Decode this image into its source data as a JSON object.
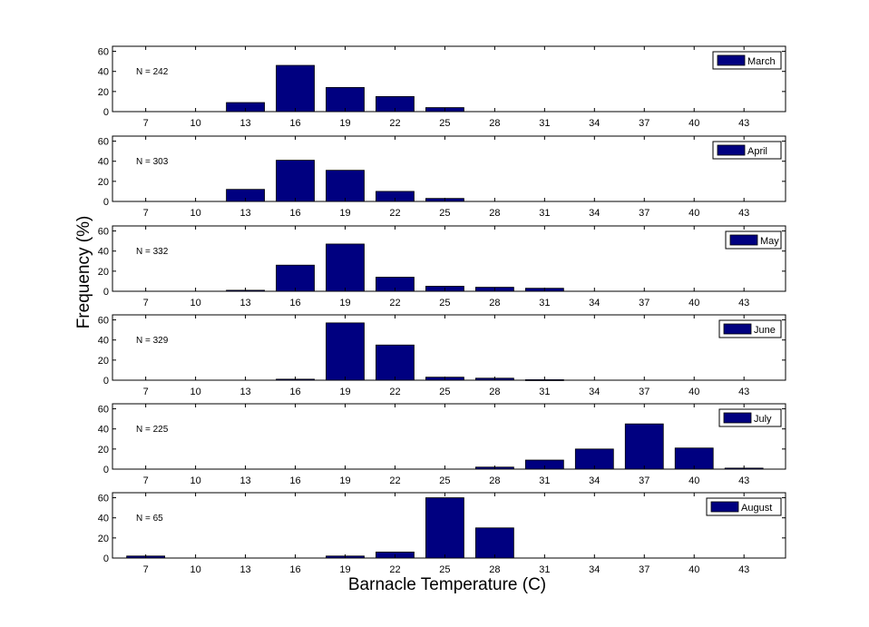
{
  "chart_data": {
    "type": "bar",
    "layout": "stacked-subplots",
    "xlabel": "Barnacle Temperature (C)",
    "ylabel": "Frequency (%)",
    "x": [
      7,
      10,
      13,
      16,
      19,
      22,
      25,
      28,
      31,
      34,
      37,
      40,
      43
    ],
    "xlim": [
      5,
      45.5
    ],
    "ylim": [
      0,
      65
    ],
    "yticks": [
      0,
      20,
      40,
      60
    ],
    "bar_color": "#000080",
    "grid": false,
    "legend_position": "top-right",
    "panels": [
      {
        "name": "March",
        "n_label": "N = 242",
        "values": [
          0,
          0,
          9,
          46,
          24,
          15,
          4,
          0,
          0,
          0,
          0,
          0,
          0
        ]
      },
      {
        "name": "April",
        "n_label": "N = 303",
        "values": [
          0,
          0,
          12,
          41,
          31,
          10,
          3,
          0,
          0,
          0,
          0,
          0,
          0
        ]
      },
      {
        "name": "May",
        "n_label": "N = 332",
        "values": [
          0,
          0,
          1,
          26,
          47,
          14,
          5,
          4,
          3,
          0,
          0,
          0,
          0
        ]
      },
      {
        "name": "June",
        "n_label": "N = 329",
        "values": [
          0,
          0,
          0,
          1,
          57,
          35,
          3,
          2,
          0.5,
          0,
          0,
          0,
          0
        ]
      },
      {
        "name": "July",
        "n_label": "N = 225",
        "values": [
          0,
          0,
          0,
          0,
          0,
          0,
          0,
          2,
          9,
          20,
          45,
          21,
          1
        ]
      },
      {
        "name": "August",
        "n_label": "N = 65",
        "values": [
          2,
          0,
          0,
          0,
          2,
          6,
          60,
          30,
          0,
          0,
          0,
          0,
          0
        ]
      }
    ]
  }
}
